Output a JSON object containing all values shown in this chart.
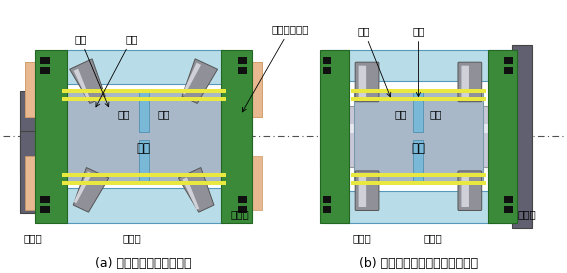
{
  "bg_color": "#ffffff",
  "fig_width": 5.67,
  "fig_height": 2.73,
  "dpi": 100,
  "title_a": "(a) 密封形円すいころ軸受",
  "title_b": "(b) 密封形つば付き円筒ころ軸受",
  "label_gairin": "外輪",
  "label_koro": "ころ",
  "label_nairin": "内輪",
  "label_manza": "間座",
  "label_shajiku": "車軸",
  "label_aburakiri": "油切り",
  "label_hojiki": "保持器",
  "label_atobuta": "後ぶた",
  "label_oilseal": "オイルシール",
  "label_tsubawa": "つば輪",
  "colors": {
    "shaft": "#c8c8c8",
    "inner_ring": "#b0b8c0",
    "outer_ring_light": "#add8e6",
    "green": "#228b22",
    "orange": "#f4a460",
    "dark_gray": "#505050",
    "black": "#000000",
    "white": "#ffffff",
    "yellow": "#ffff00",
    "blue_light": "#87ceeb",
    "roller_dark": "#808080",
    "roller_light": "#e0e0e0"
  }
}
